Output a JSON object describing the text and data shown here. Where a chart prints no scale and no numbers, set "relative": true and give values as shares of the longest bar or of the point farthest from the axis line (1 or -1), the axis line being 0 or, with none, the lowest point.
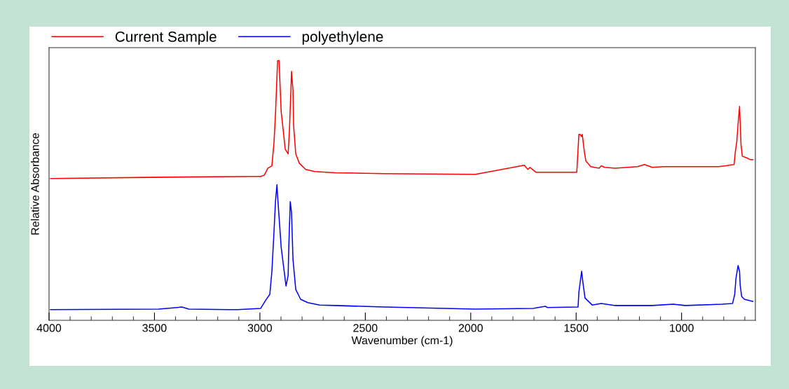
{
  "chart_data": {
    "type": "line",
    "xlabel": "Wavenumber (cm-1)",
    "ylabel": "Relative Absorbance",
    "relative": true,
    "legend": "top",
    "grid": false,
    "tick_labels": "x",
    "marker": "none",
    "line_style": "solid",
    "xlim": [
      4000,
      650
    ],
    "xticks": [
      4000,
      {
        "value": 3900,
        "label": null
      },
      {
        "value": 3800,
        "label": null
      },
      {
        "value": 3700,
        "label": null
      },
      {
        "value": 3600,
        "label": null
      },
      3500,
      {
        "value": 3400,
        "label": null
      },
      {
        "value": 3300,
        "label": null
      },
      {
        "value": 3200,
        "label": null
      },
      {
        "value": 3100,
        "label": null
      },
      3000,
      {
        "value": 2900,
        "label": null
      },
      {
        "value": 2800,
        "label": null
      },
      {
        "value": 2700,
        "label": null
      },
      {
        "value": 2600,
        "label": null
      },
      2500,
      {
        "value": 2400,
        "label": null
      },
      {
        "value": 2300,
        "label": null
      },
      {
        "value": 2200,
        "label": null
      },
      {
        "value": 2100,
        "label": null
      },
      2000,
      {
        "value": 1900,
        "label": null
      },
      {
        "value": 1800,
        "label": null
      },
      {
        "value": 1700,
        "label": null
      },
      {
        "value": 1600,
        "label": null
      },
      1500,
      {
        "value": 1400,
        "label": null
      },
      {
        "value": 1300,
        "label": null
      },
      {
        "value": 1200,
        "label": null
      },
      {
        "value": 1100,
        "label": null
      },
      1000,
      {
        "value": 900,
        "label": null
      },
      {
        "value": 800,
        "label": null
      },
      {
        "value": 700,
        "label": null
      }
    ],
    "series": [
      {
        "name": "Current Sample",
        "color": "#ff0000",
        "x": [
          3993,
          3480,
          3039,
          2996,
          2979,
          2962,
          2943,
          2933,
          2926,
          2916,
          2909,
          2906,
          2899,
          2889,
          2880,
          2866,
          2860,
          2853,
          2850,
          2843,
          2840,
          2830,
          2813,
          2783,
          2740,
          2641,
          2409,
          1978,
          1746,
          1729,
          1719,
          1690,
          1497,
          1487,
          1481,
          1474,
          1471,
          1461,
          1454,
          1431,
          1391,
          1381,
          1365,
          1315,
          1209,
          1176,
          1139,
          1083,
          894,
          824,
          791,
          751,
          745,
          738,
          732,
          725,
          722,
          718,
          712,
          695,
          675,
          662
        ],
        "values": [
          0.546,
          0.551,
          0.554,
          0.554,
          0.559,
          0.586,
          0.595,
          0.686,
          0.795,
          1.0,
          1.0,
          0.938,
          0.803,
          0.73,
          0.659,
          0.641,
          0.73,
          0.884,
          0.959,
          0.884,
          0.749,
          0.641,
          0.605,
          0.581,
          0.573,
          0.568,
          0.565,
          0.562,
          0.597,
          0.581,
          0.589,
          0.57,
          0.57,
          0.716,
          0.716,
          0.708,
          0.716,
          0.649,
          0.614,
          0.592,
          0.586,
          0.595,
          0.589,
          0.586,
          0.592,
          0.6,
          0.589,
          0.592,
          0.592,
          0.592,
          0.595,
          0.6,
          0.649,
          0.689,
          0.757,
          0.824,
          0.757,
          0.676,
          0.632,
          0.627,
          0.619,
          0.619
        ]
      },
      {
        "name": "polyethylene",
        "color": "#0000ff",
        "x": [
          3993,
          3480,
          3370,
          3337,
          3148,
          3105,
          2996,
          2972,
          2953,
          2943,
          2933,
          2926,
          2919,
          2916,
          2909,
          2899,
          2889,
          2876,
          2866,
          2863,
          2856,
          2850,
          2843,
          2830,
          2807,
          2773,
          2717,
          2641,
          2409,
          1978,
          1703,
          1646,
          1636,
          1491,
          1487,
          1474,
          1468,
          1458,
          1424,
          1381,
          1315,
          1139,
          1040,
          983,
          808,
          758,
          748,
          742,
          732,
          725,
          722,
          715,
          702,
          662
        ],
        "values": [
          0.041,
          0.043,
          0.051,
          0.043,
          0.041,
          0.041,
          0.046,
          0.078,
          0.1,
          0.189,
          0.343,
          0.459,
          0.522,
          0.478,
          0.397,
          0.281,
          0.216,
          0.132,
          0.173,
          0.281,
          0.457,
          0.416,
          0.235,
          0.119,
          0.081,
          0.068,
          0.059,
          0.057,
          0.051,
          0.043,
          0.046,
          0.054,
          0.049,
          0.051,
          0.108,
          0.189,
          0.146,
          0.086,
          0.059,
          0.065,
          0.057,
          0.057,
          0.062,
          0.057,
          0.062,
          0.065,
          0.1,
          0.162,
          0.211,
          0.189,
          0.135,
          0.092,
          0.081,
          0.073
        ]
      }
    ]
  }
}
